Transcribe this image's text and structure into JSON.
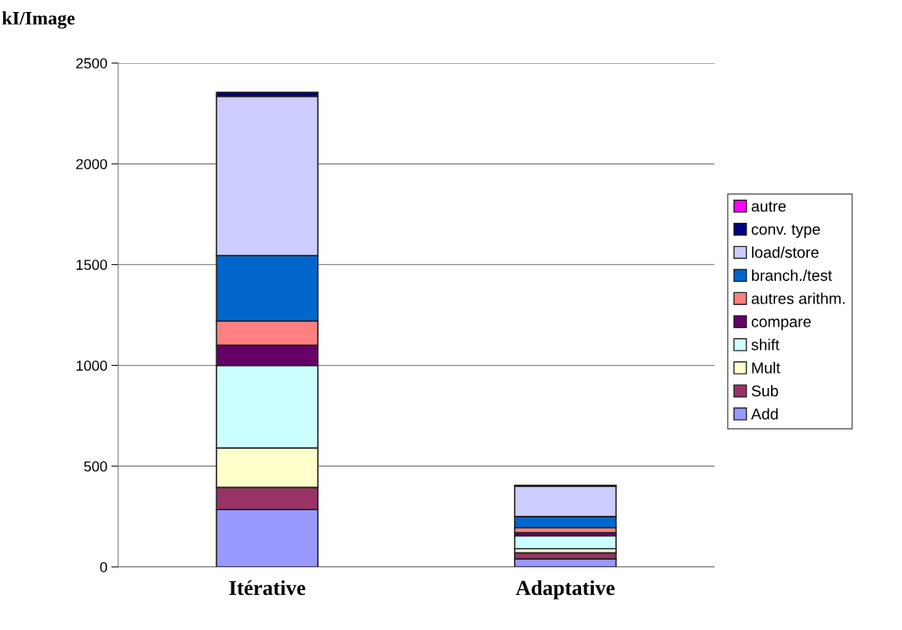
{
  "chart_data": {
    "type": "bar",
    "stacked": true,
    "ylabel": "kI/Image",
    "categories": [
      "Itérative",
      "Adaptative"
    ],
    "series": [
      {
        "name": "Add",
        "color": "#9999ff",
        "values": [
          285,
          40
        ]
      },
      {
        "name": "Sub",
        "color": "#993366",
        "values": [
          110,
          30
        ]
      },
      {
        "name": "Mult",
        "color": "#ffffcc",
        "values": [
          195,
          20
        ]
      },
      {
        "name": "shift",
        "color": "#ccffff",
        "values": [
          410,
          65
        ]
      },
      {
        "name": "compare",
        "color": "#660066",
        "values": [
          100,
          15
        ]
      },
      {
        "name": "autres arithm.",
        "color": "#ff8080",
        "values": [
          120,
          25
        ]
      },
      {
        "name": "branch./test",
        "color": "#0066cc",
        "values": [
          325,
          55
        ]
      },
      {
        "name": "load/store",
        "color": "#ccccff",
        "values": [
          790,
          150
        ]
      },
      {
        "name": "conv. type",
        "color": "#000080",
        "values": [
          20,
          5
        ]
      },
      {
        "name": "autre",
        "color": "#ff00ff",
        "values": [
          null,
          null
        ]
      }
    ],
    "ylim": [
      0,
      2500
    ],
    "yticks": [
      0,
      500,
      1000,
      1500,
      2000,
      2500
    ],
    "grid": "y",
    "legend": "right"
  }
}
